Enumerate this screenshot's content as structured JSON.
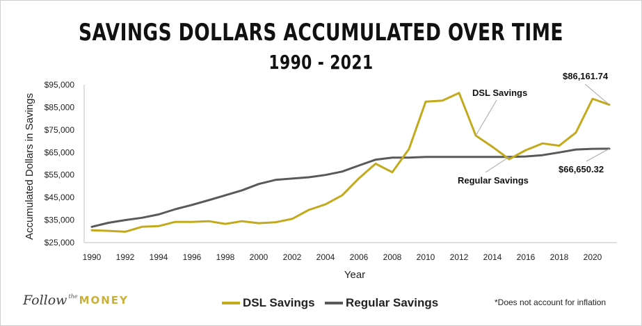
{
  "title": "SAVINGS DOLLARS ACCUMULATED OVER TIME",
  "subtitle": "1990 - 2021",
  "footnote": "*Does not account for inflation",
  "logo": {
    "word1": "Follow",
    "word2": "the",
    "word3": "MONEY"
  },
  "colors": {
    "dsl": "#c3a91c",
    "regular": "#595959",
    "axis": "#bfbfbf",
    "text": "#222222"
  },
  "chart_data": {
    "type": "line",
    "xlabel": "Year",
    "ylabel": "Accumulated Dollars in Savings",
    "x": [
      1990,
      1991,
      1992,
      1993,
      1994,
      1995,
      1996,
      1997,
      1998,
      1999,
      2000,
      2001,
      2002,
      2003,
      2004,
      2005,
      2006,
      2007,
      2008,
      2009,
      2010,
      2011,
      2012,
      2013,
      2014,
      2015,
      2016,
      2017,
      2018,
      2019,
      2020,
      2021
    ],
    "xticks": [
      "1990",
      "1992",
      "1994",
      "1996",
      "1998",
      "2000",
      "2002",
      "2004",
      "2006",
      "2008",
      "2010",
      "2012",
      "2014",
      "2016",
      "2018",
      "2020"
    ],
    "ylim": [
      25000,
      95000
    ],
    "yticks": [
      "$25,000",
      "$35,000",
      "$45,000",
      "$55,000",
      "$65,000",
      "$75,000",
      "$85,000",
      "$95,000"
    ],
    "series": [
      {
        "name": "DSL Savings",
        "values": [
          30500,
          30200,
          29800,
          32000,
          32300,
          34200,
          34200,
          34500,
          33300,
          34500,
          33600,
          34000,
          35500,
          39500,
          42000,
          46000,
          53500,
          60000,
          56200,
          66500,
          87500,
          88000,
          91400,
          72500,
          67500,
          62000,
          66000,
          69000,
          68000,
          73800,
          88800,
          86161.74
        ]
      },
      {
        "name": "Regular Savings",
        "values": [
          32000,
          33800,
          35000,
          36000,
          37500,
          39800,
          41700,
          43800,
          46000,
          48200,
          51000,
          52800,
          53400,
          54000,
          55000,
          56500,
          59200,
          61800,
          62700,
          62700,
          63000,
          63000,
          63000,
          63000,
          63000,
          63000,
          63200,
          63800,
          65000,
          66300,
          66600,
          66650.32
        ]
      }
    ],
    "annotations": [
      {
        "text": "$86,161.74",
        "series": "DSL Savings",
        "year": 2021
      },
      {
        "text": "DSL Savings",
        "series": "DSL Savings",
        "year": 2013
      },
      {
        "text": "Regular Savings",
        "series": "Regular Savings",
        "year": 2015
      },
      {
        "text": "$66,650.32",
        "series": "Regular Savings",
        "year": 2021
      }
    ],
    "legend_position": "bottom"
  }
}
